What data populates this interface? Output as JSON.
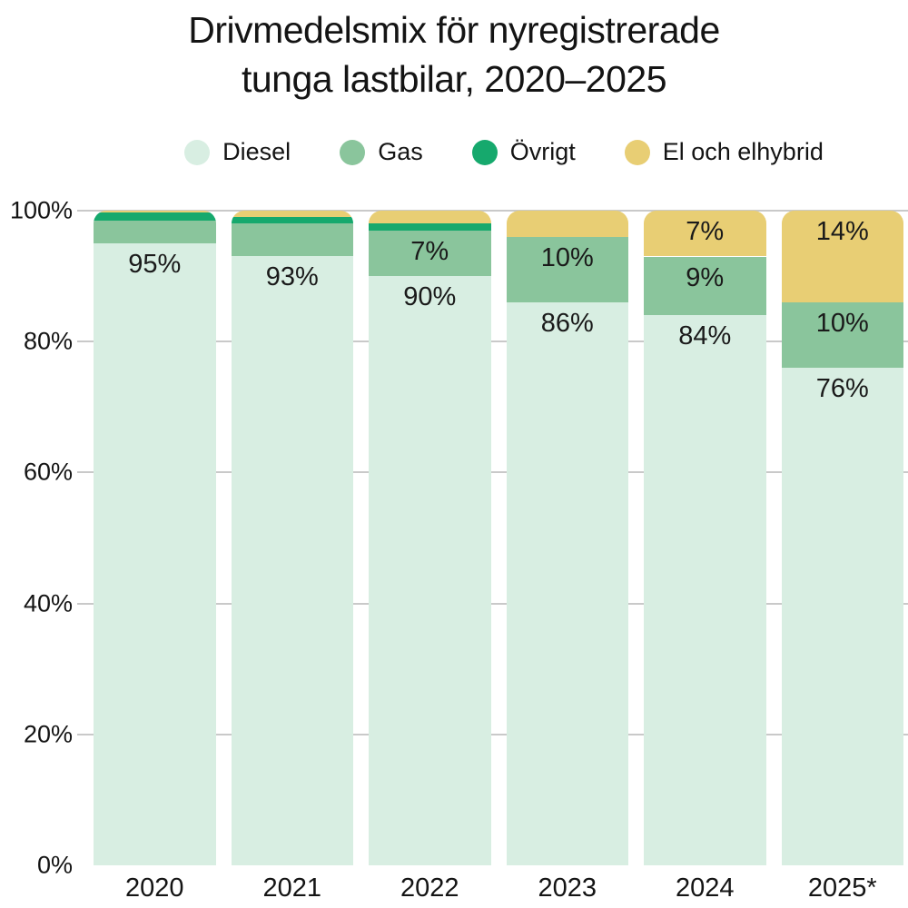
{
  "title": {
    "line1": "Drivmedelsmix för nyregistrerade",
    "line2": "tunga lastbilar, 2020–2025",
    "full": "Drivmedelsmix för nyregistrerade tunga lastbilar, 2020–2025"
  },
  "colors": {
    "diesel": "#d8eee2",
    "gas": "#8ac59c",
    "ovrigt": "#16a96d",
    "el_och_elhybrid": "#e8ce74",
    "gridline": "#c9c9c9",
    "text": "#141414",
    "background": "#ffffff"
  },
  "chart_data": {
    "type": "bar",
    "stacked": true,
    "percent_stacked": true,
    "title": "Drivmedelsmix för nyregistrerade tunga lastbilar, 2020–2025",
    "categories": [
      "2020",
      "2021",
      "2022",
      "2023",
      "2024",
      "2025*"
    ],
    "series": [
      {
        "name": "Diesel",
        "key": "diesel",
        "color": "#d8eee2",
        "values": [
          95,
          93,
          90,
          86,
          84,
          76
        ],
        "labels": [
          "95%",
          "93%",
          "90%",
          "86%",
          "84%",
          "76%"
        ]
      },
      {
        "name": "Gas",
        "key": "gas",
        "color": "#8ac59c",
        "values": [
          3.5,
          5,
          7,
          10,
          9,
          10
        ],
        "labels": [
          "",
          "",
          "7%",
          "10%",
          "9%",
          "10%"
        ]
      },
      {
        "name": "Övrigt",
        "key": "ovrigt",
        "color": "#16a96d",
        "values": [
          1.2,
          1,
          1,
          0,
          0,
          0
        ],
        "labels": [
          "",
          "",
          "",
          "",
          "",
          ""
        ]
      },
      {
        "name": "El och elhybrid",
        "key": "el-och-elhybrid",
        "color": "#e8ce74",
        "values": [
          0.3,
          1,
          2,
          4,
          7,
          14
        ],
        "labels": [
          "",
          "",
          "",
          "",
          "7%",
          "14%"
        ]
      }
    ],
    "xlabel": "",
    "ylabel": "",
    "yticks": [
      "0%",
      "20%",
      "40%",
      "60%",
      "80%",
      "100%"
    ],
    "ylim": [
      0,
      100
    ],
    "grid": "horizontal",
    "legend_position": "top",
    "legend_labels": [
      "Diesel",
      "Gas",
      "Övrigt",
      "El och elhybrid"
    ]
  }
}
